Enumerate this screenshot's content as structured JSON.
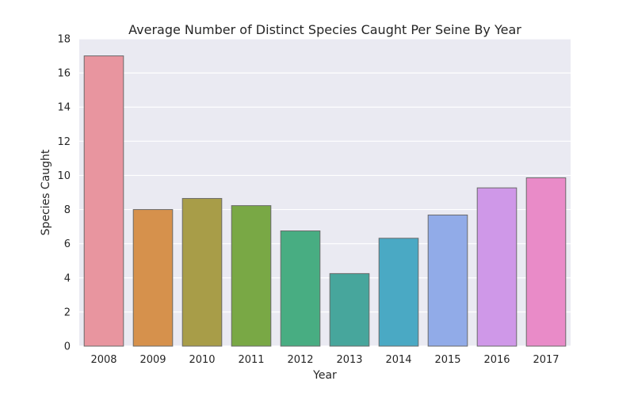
{
  "chart_data": {
    "type": "bar",
    "title": "Average Number of Distinct Species Caught Per Seine By Year",
    "xlabel": "Year",
    "ylabel": "Species Caught",
    "categories": [
      "2008",
      "2009",
      "2010",
      "2011",
      "2012",
      "2013",
      "2014",
      "2015",
      "2016",
      "2017"
    ],
    "values": [
      17.0,
      8.0,
      8.65,
      8.23,
      6.75,
      4.25,
      6.32,
      7.68,
      9.27,
      9.86
    ],
    "ylim": [
      0,
      18
    ],
    "yticks": [
      0,
      2,
      4,
      6,
      8,
      10,
      12,
      14,
      16,
      18
    ],
    "grid": true,
    "colors": [
      "#e8959f",
      "#d6914c",
      "#a89d48",
      "#79a845",
      "#48ad82",
      "#47a69c",
      "#4aa9c4",
      "#91abe8",
      "#cf98e8",
      "#e98bc8"
    ],
    "background": "#eaeaf2"
  }
}
